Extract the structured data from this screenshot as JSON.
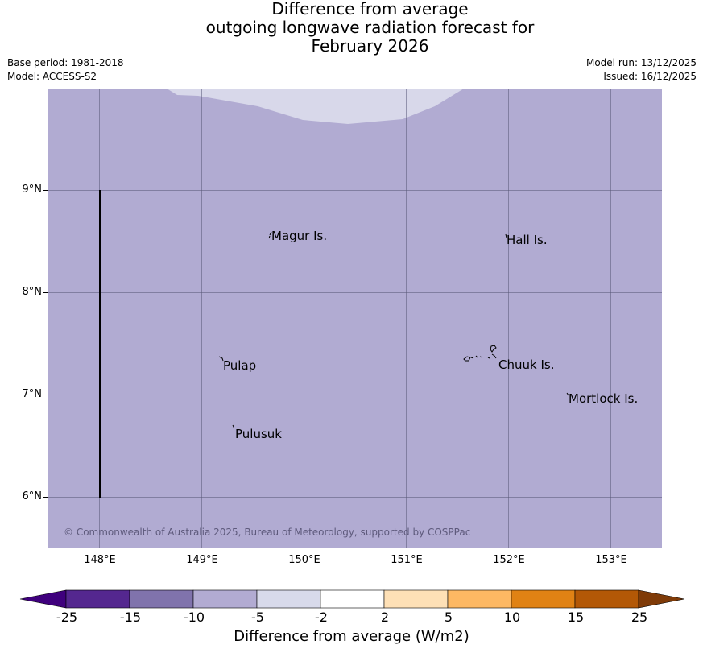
{
  "header": {
    "title_lines": [
      "Difference from average",
      "outgoing longwave radiation forecast for",
      "February 2026"
    ],
    "base_period": "Base period: 1981-2018",
    "model": "Model: ACCESS-S2",
    "model_run": "Model run: 13/12/2025",
    "issued": "Issued: 16/12/2025"
  },
  "map": {
    "lat_labels": [
      "9°N",
      "8°N",
      "7°N",
      "6°N"
    ],
    "lon_labels": [
      "148°E",
      "149°E",
      "150°E",
      "151°E",
      "152°E",
      "153°E"
    ],
    "places": [
      "Magur Is.",
      "Hall Is.",
      "Pulap",
      "Chuuk Is.",
      "Mortlock Is.",
      "Pulusuk"
    ],
    "copyright": "© Commonwealth of Australia 2025, Bureau of Meteorology, supported by COSPPac",
    "background_color": "#b1abd2",
    "top_region_color": "#d8d8ea",
    "top_region_category": "-5 to -2"
  },
  "colorbar": {
    "title": "Difference from average (W/m2)",
    "labels": [
      "-25",
      "-15",
      "-10",
      "-5",
      "-2",
      "2",
      "5",
      "10",
      "15",
      "25"
    ],
    "colors": [
      "#3f007d",
      "#54278f",
      "#8073ac",
      "#b2abd2",
      "#d8daeb",
      "#ffffff",
      "#fee0b6",
      "#fdb863",
      "#e08214",
      "#b35806",
      "#7f3b08"
    ]
  }
}
